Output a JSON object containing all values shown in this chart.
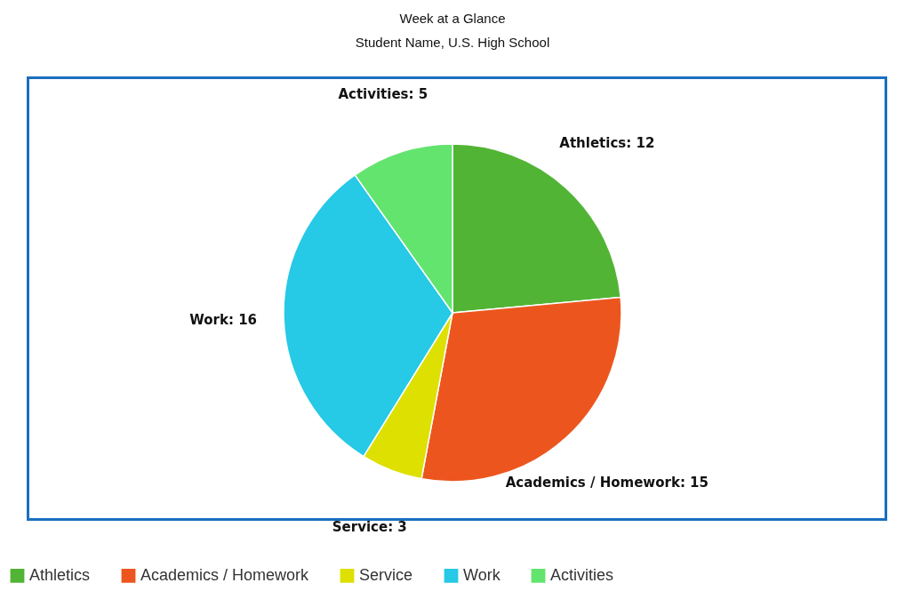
{
  "chart_data": {
    "type": "pie",
    "title": "Week at a Glance",
    "subtitle": "Student Name, U.S. High School",
    "categories": [
      "Athletics",
      "Academics / Homework",
      "Service",
      "Work",
      "Activities"
    ],
    "values": [
      12,
      15,
      3,
      16,
      5
    ],
    "colors": [
      "#52b434",
      "#ec561e",
      "#dde000",
      "#26c9e6",
      "#63e46f"
    ],
    "value_labels": [
      "Athletics: 12",
      "Academics / Homework: 15",
      "Service: 3",
      "Work: 16",
      "Activities: 5"
    ],
    "legend": "bottom"
  }
}
